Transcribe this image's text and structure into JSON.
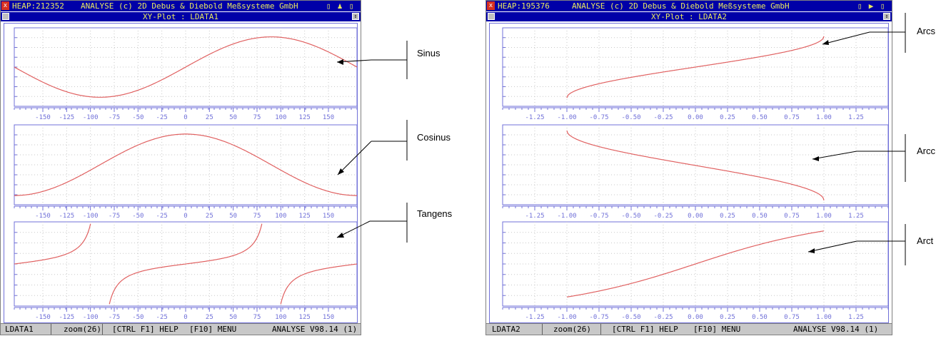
{
  "window1": {
    "heap": "HEAP:212352",
    "copyright": "ANALYSE (c) 2D Debus & Diebold Meßsysteme GmbH",
    "plot_title": "XY-Plot : LDATA1",
    "status": {
      "dataset": "LDATA1",
      "zoom": "zoom(26)",
      "help": "[CTRL F1] HELP",
      "menu": "[F10] MENU",
      "version": "ANALYSE V98.14 (1)"
    },
    "x_ticks": [
      "-150",
      "-125",
      "-100",
      "-75",
      "-50",
      "-25",
      "0",
      "25",
      "50",
      "75",
      "100",
      "125",
      "150"
    ]
  },
  "window2": {
    "heap": "HEAP:195376",
    "copyright": "ANALYSE (c) 2D Debus & Diebold Meßsysteme GmbH",
    "plot_title": "XY-Plot : LDATA2",
    "status": {
      "dataset": "LDATA2",
      "zoom": "zoom(26)",
      "help": "[CTRL F1] HELP",
      "menu": "[F10] MENU",
      "version": "ANALYSE V98.14 (1)"
    },
    "x_ticks": [
      "-1.25",
      "-1.00",
      "-0.75",
      "-0.50",
      "-0.25",
      "0.00",
      "0.25",
      "0.50",
      "0.75",
      "1.00",
      "1.25"
    ]
  },
  "annotations": [
    "Sinus",
    "Cosinus",
    "Tangens",
    "Arcs",
    "Arcc",
    "Arct"
  ],
  "colors": {
    "title_bg": "#0000a8",
    "title_text": "#e8e860",
    "curve": "#e06060",
    "axis": "#7070d8",
    "status_bg": "#c8c8c8"
  }
}
